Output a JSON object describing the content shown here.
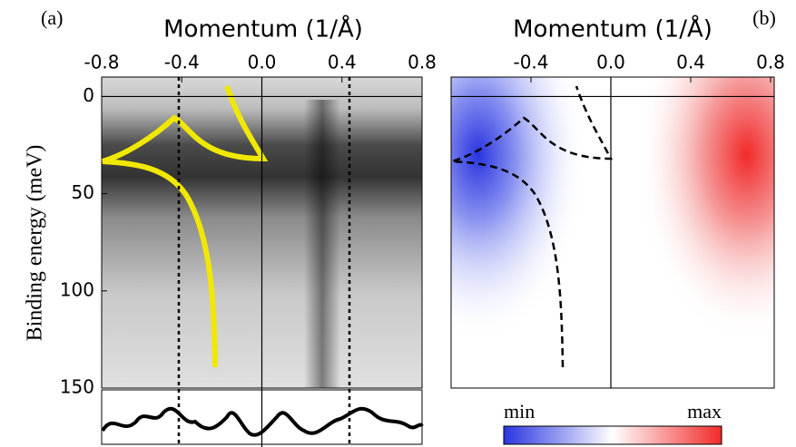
{
  "chart_data": [
    {
      "type": "heatmap",
      "panel_label": "(a)",
      "xlabel": "Momentum (1/Å)",
      "ylabel": "Binding energy (meV)",
      "xlim": [
        -0.8,
        0.8
      ],
      "ylim": [
        -10,
        150
      ],
      "xticks": [
        -0.8,
        -0.4,
        {
          "value": 0,
          "label": "0.0"
        },
        0.4,
        0.8
      ],
      "yticks": [
        0,
        50,
        100,
        150
      ]
    },
    {
      "type": "heatmap",
      "panel_label": "(b)",
      "xlabel": "Momentum (1/Å)",
      "xlim": [
        -0.8,
        0.8
      ],
      "ylim": [
        -10,
        150
      ],
      "xticks": [
        -0.4,
        {
          "value": 0,
          "label": "0.0"
        },
        0.4,
        0.8
      ],
      "colorbar_labels": [
        "min",
        "max"
      ]
    }
  ]
}
